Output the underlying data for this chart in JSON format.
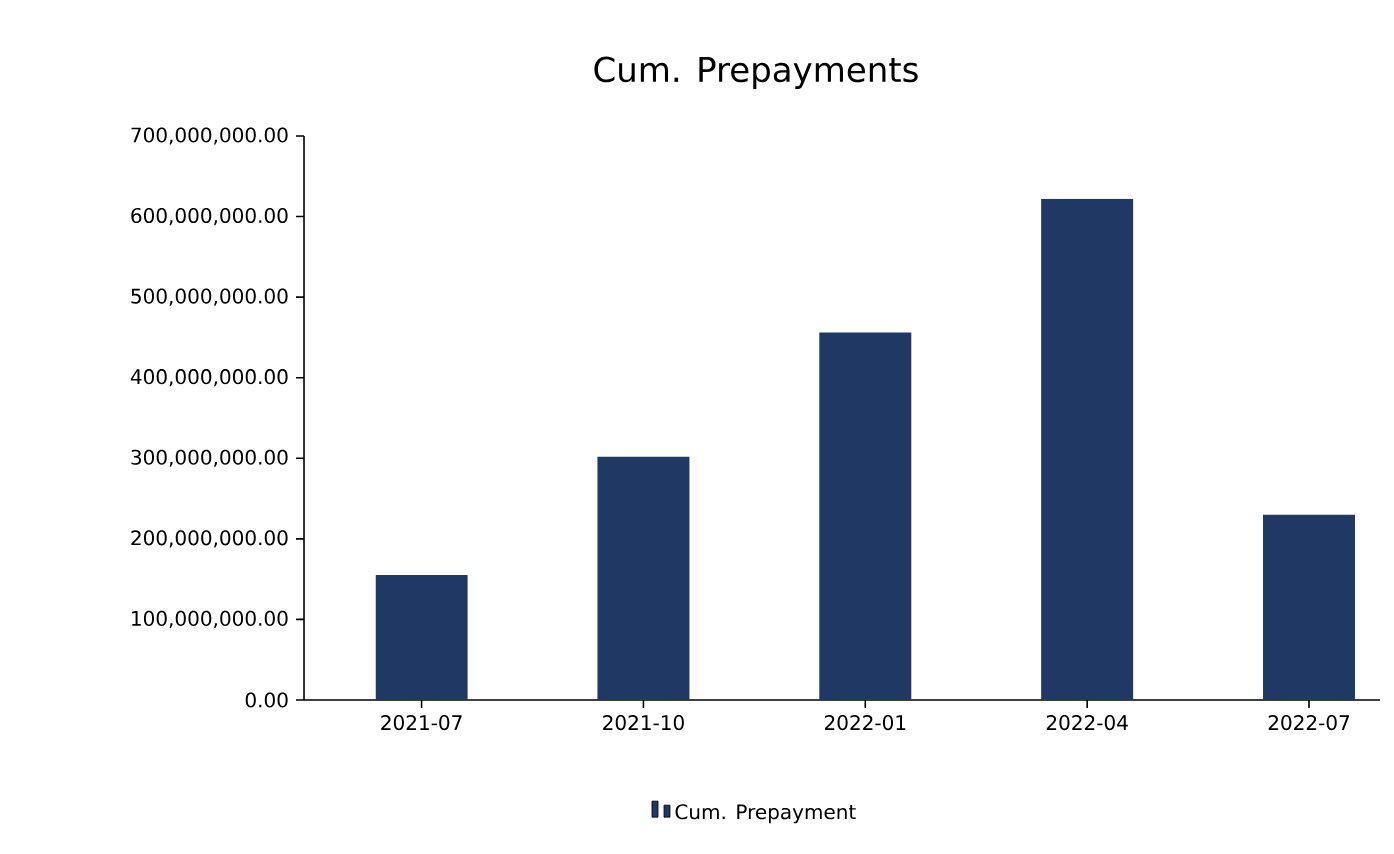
{
  "chart_data": {
    "type": "bar",
    "title": "Cum. Prepayments",
    "categories": [
      "2021-07",
      "2021-10",
      "2022-01",
      "2022-04",
      "2022-07"
    ],
    "series": [
      {
        "name": "Cum. Prepayment",
        "color": "#1f3864",
        "values": [
          155000000,
          302000000,
          456000000,
          622000000,
          230000000
        ]
      }
    ],
    "ylim": [
      0,
      700000000
    ],
    "yticks": [
      {
        "value": 0,
        "label": "0.00"
      },
      {
        "value": 100000000,
        "label": "100,000,000.00"
      },
      {
        "value": 200000000,
        "label": "200,000,000.00"
      },
      {
        "value": 300000000,
        "label": "300,000,000.00"
      },
      {
        "value": 400000000,
        "label": "400,000,000.00"
      },
      {
        "value": 500000000,
        "label": "500,000,000.00"
      },
      {
        "value": 600000000,
        "label": "600,000,000.00"
      },
      {
        "value": 700000000,
        "label": "700,000,000.00"
      }
    ],
    "grid": false,
    "legend": "bottom"
  }
}
